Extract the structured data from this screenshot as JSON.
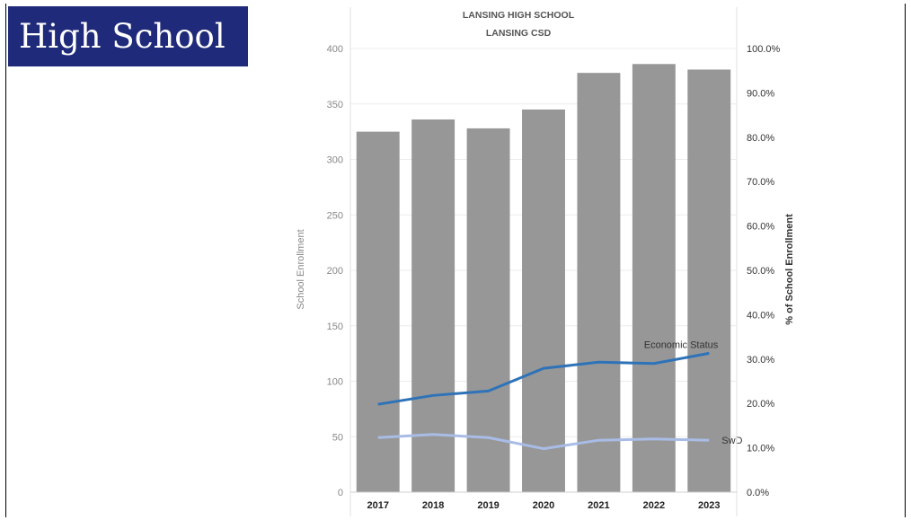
{
  "slide": {
    "heading": "High School"
  },
  "chart_data": {
    "type": "bar",
    "title": "LANSING HIGH SCHOOL",
    "subtitle": "LANSING CSD",
    "ylabel": "School Enrollment",
    "y2label": "% of School Enrollment",
    "categories": [
      "2017",
      "2018",
      "2019",
      "2020",
      "2021",
      "2022",
      "2023"
    ],
    "values": [
      325,
      336,
      328,
      345,
      378,
      386,
      381
    ],
    "ylim": [
      0,
      400
    ],
    "yticks": [
      "0",
      "50",
      "100",
      "150",
      "200",
      "250",
      "300",
      "350",
      "400"
    ],
    "y2lim": [
      0,
      100
    ],
    "y2ticks": [
      "0.0%",
      "10.0%",
      "20.0%",
      "30.0%",
      "40.0%",
      "50.0%",
      "60.0%",
      "70.0%",
      "80.0%",
      "90.0%",
      "100.0%"
    ],
    "bar_color": "#979797",
    "grid": true,
    "lines": [
      {
        "name": "Economic Status",
        "axis": "right",
        "color": "#2e73b8",
        "values": [
          19.8,
          21.8,
          22.8,
          27.9,
          29.3,
          29.0,
          31.3
        ]
      },
      {
        "name": "SwD",
        "axis": "right",
        "color": "#a8bce6",
        "values": [
          12.3,
          13.0,
          12.3,
          9.8,
          11.7,
          12.0,
          11.7
        ]
      }
    ]
  }
}
